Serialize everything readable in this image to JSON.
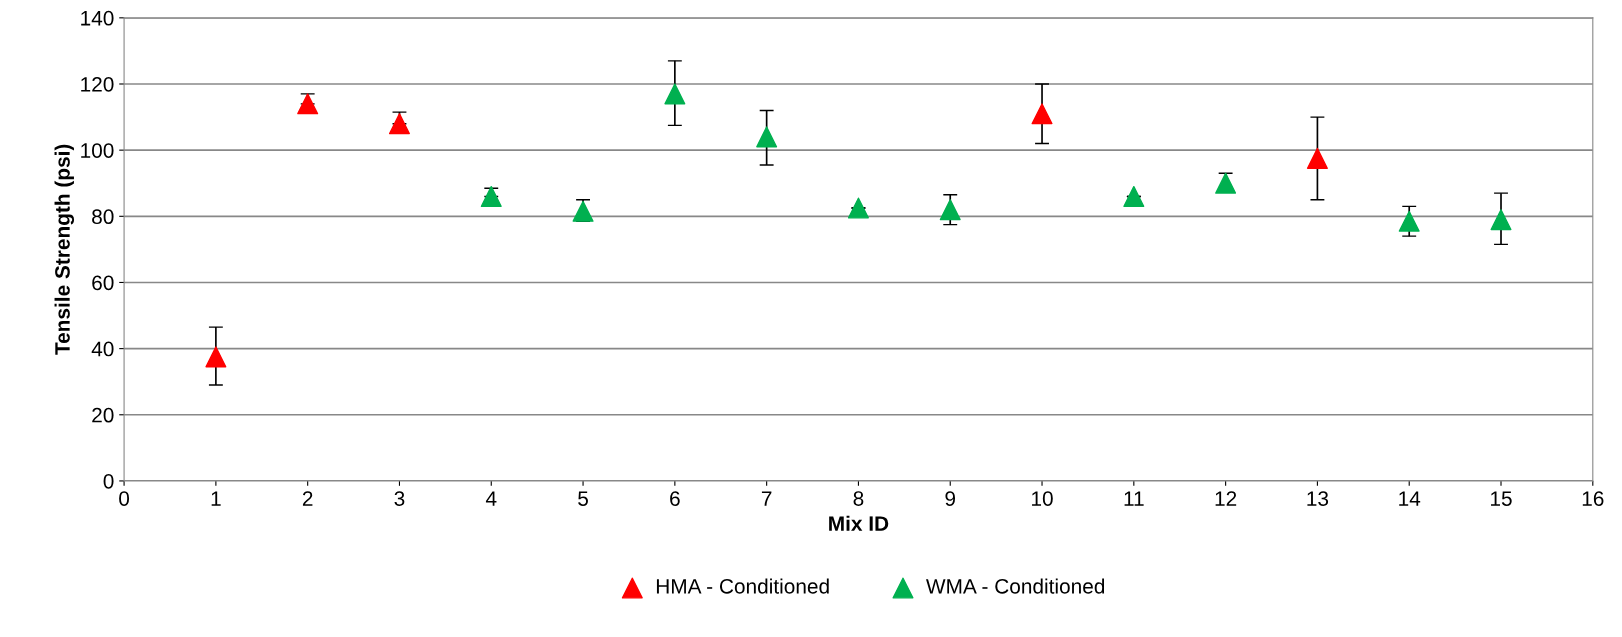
{
  "chart_data": {
    "type": "scatter",
    "xlabel": "Mix ID",
    "ylabel": "Tensile Strength (psi)",
    "xlim": [
      0,
      16
    ],
    "xticks": [
      0,
      1,
      2,
      3,
      4,
      5,
      6,
      7,
      8,
      9,
      10,
      11,
      12,
      13,
      14,
      15,
      16
    ],
    "ylim": [
      0,
      140
    ],
    "yticks": [
      0,
      20,
      40,
      60,
      80,
      100,
      120,
      140
    ],
    "grid": "y",
    "legend": "bottom",
    "marker": "triangle",
    "series": [
      {
        "name": "HMA - Conditioned",
        "color": "#ff0000",
        "x": [
          1,
          2,
          3,
          10,
          13
        ],
        "values": [
          37.5,
          114,
          108,
          111,
          97.5
        ],
        "errors": [
          [
            29,
            46.5
          ],
          [
            114,
            117
          ],
          [
            108,
            111.5
          ],
          [
            102,
            120
          ],
          [
            85,
            110
          ]
        ]
      },
      {
        "name": "WMA - Conditioned",
        "color": "#00b050",
        "x": [
          4,
          5,
          6,
          7,
          8,
          9,
          11,
          12,
          14,
          15
        ],
        "values": [
          86,
          81.5,
          117,
          104,
          82.5,
          82,
          86,
          90,
          78.5,
          79
        ],
        "errors": [
          [
            86,
            88.5
          ],
          [
            78.5,
            85
          ],
          [
            107.5,
            127
          ],
          [
            95.5,
            112
          ],
          null,
          [
            77.5,
            86.5
          ],
          null,
          [
            87.5,
            93
          ],
          [
            74,
            83
          ],
          [
            71.5,
            87
          ]
        ]
      }
    ]
  }
}
